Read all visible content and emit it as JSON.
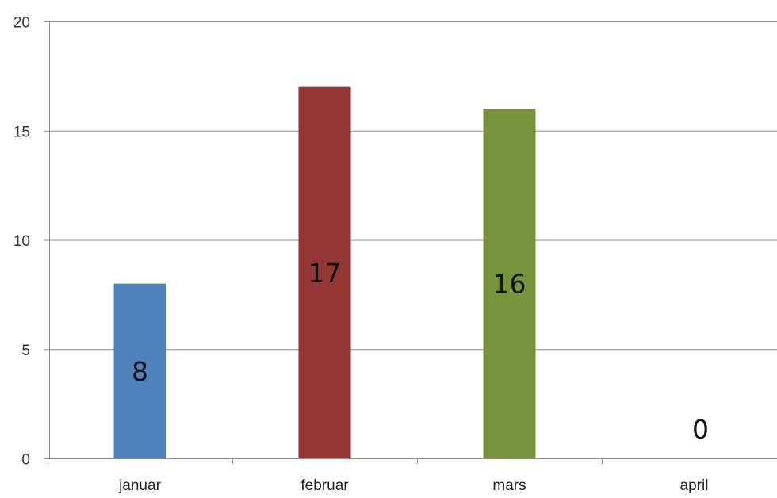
{
  "chart_data": {
    "type": "bar",
    "title": "",
    "xlabel": "",
    "ylabel": "",
    "categories": [
      "januar",
      "februar",
      "mars",
      "april"
    ],
    "values": [
      8,
      17,
      16,
      0
    ],
    "data_labels": [
      "8",
      "17",
      "16",
      "0"
    ],
    "colors": [
      "#4f81bd",
      "#943634",
      "#77933c",
      "#4f81bd"
    ],
    "ylim": [
      0,
      20
    ],
    "yticks": [
      0,
      5,
      10,
      15,
      20
    ],
    "ytick_labels": [
      "0",
      "5",
      "10",
      "15",
      "20"
    ],
    "grid": true,
    "legend": "none"
  }
}
